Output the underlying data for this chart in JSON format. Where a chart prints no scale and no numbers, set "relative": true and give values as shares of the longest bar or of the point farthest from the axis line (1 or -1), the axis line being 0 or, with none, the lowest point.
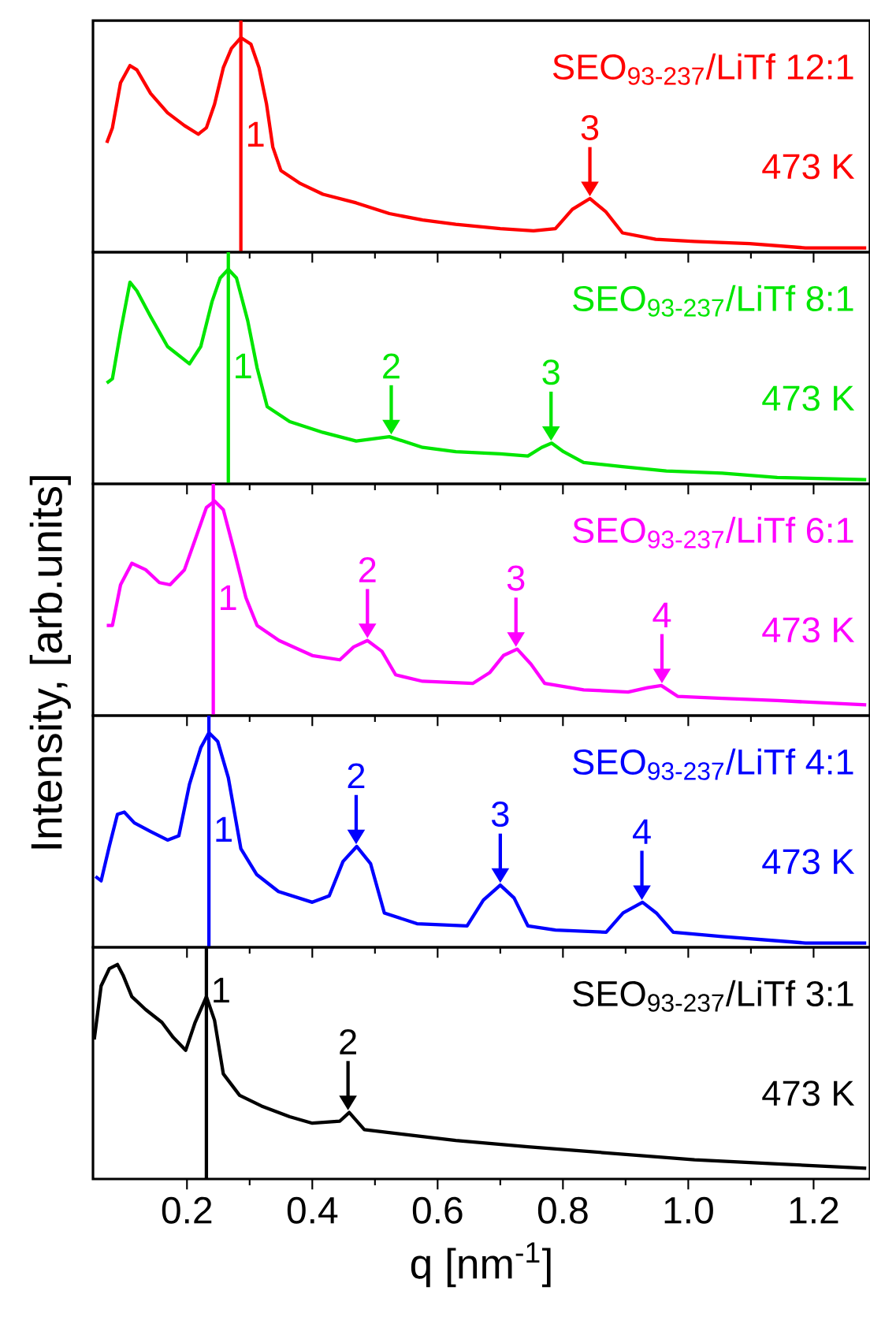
{
  "chart_data": [
    {
      "type": "line",
      "title": "SEO$_{93-237}$/LiTf 12:1",
      "subtitle": "473 K",
      "relative": true,
      "tick_labels": false,
      "xlim": [
        0.05,
        1.29
      ],
      "xticks": [
        0.2,
        0.4,
        0.6,
        0.8,
        1.0,
        1.2
      ],
      "x": [
        0.072,
        0.081,
        0.094,
        0.109,
        0.12,
        0.142,
        0.169,
        0.196,
        0.218,
        0.231,
        0.244,
        0.258,
        0.271,
        0.286,
        0.302,
        0.315,
        0.327,
        0.337,
        0.35,
        0.381,
        0.417,
        0.47,
        0.523,
        0.576,
        0.629,
        0.7,
        0.753,
        0.788,
        0.815,
        0.843,
        0.868,
        0.895,
        0.948,
        1.01,
        1.098,
        1.187,
        1.284
      ],
      "series": [
        {
          "color": "#ff0000",
          "values": [
            0.51,
            0.58,
            0.79,
            0.87,
            0.85,
            0.74,
            0.65,
            0.59,
            0.55,
            0.58,
            0.69,
            0.86,
            0.95,
            1,
            0.97,
            0.86,
            0.69,
            0.49,
            0.38,
            0.32,
            0.27,
            0.23,
            0.18,
            0.15,
            0.13,
            0.11,
            0.1,
            0.11,
            0.2,
            0.25,
            0.19,
            0.09,
            0.06,
            0.05,
            0.04,
            0.02,
            0.02
          ]
        }
      ],
      "ref_lines": [
        {
          "axis": "x",
          "value": 0.286,
          "color": "#ff0000"
        }
      ],
      "annotations": [
        "1",
        {
          "text": "3",
          "x": 0.843,
          "y": 0.25
        }
      ]
    },
    {
      "type": "line",
      "title": "SEO$_{93-237}$/LiTf 8:1",
      "subtitle": "473 K",
      "relative": true,
      "tick_labels": false,
      "xlim": [
        0.05,
        1.29
      ],
      "xticks": [
        0.2,
        0.4,
        0.6,
        0.8,
        1.0,
        1.2
      ],
      "x": [
        0.072,
        0.081,
        0.094,
        0.109,
        0.12,
        0.142,
        0.169,
        0.204,
        0.222,
        0.24,
        0.253,
        0.266,
        0.279,
        0.297,
        0.312,
        0.328,
        0.364,
        0.417,
        0.47,
        0.523,
        0.576,
        0.629,
        0.7,
        0.744,
        0.766,
        0.782,
        0.801,
        0.833,
        0.895,
        0.965,
        1.054,
        1.142,
        1.284
      ],
      "series": [
        {
          "color": "#00e600",
          "values": [
            0.47,
            0.49,
            0.71,
            0.94,
            0.9,
            0.78,
            0.64,
            0.56,
            0.64,
            0.85,
            0.96,
            1,
            0.96,
            0.76,
            0.54,
            0.36,
            0.29,
            0.24,
            0.2,
            0.22,
            0.17,
            0.15,
            0.14,
            0.13,
            0.17,
            0.19,
            0.15,
            0.1,
            0.08,
            0.06,
            0.05,
            0.03,
            0.02
          ]
        }
      ],
      "ref_lines": [
        {
          "axis": "x",
          "value": 0.266,
          "color": "#00e600"
        }
      ],
      "annotations": [
        "1",
        {
          "text": "2",
          "x": 0.526,
          "y": 0.22
        },
        {
          "text": "3",
          "x": 0.781,
          "y": 0.19
        }
      ]
    },
    {
      "type": "line",
      "title": "SEO$_{93-237}$/LiTf 6:1",
      "subtitle": "473 K",
      "ylabel": "Intensity, [arb.units]",
      "relative": true,
      "tick_labels": false,
      "xlim": [
        0.05,
        1.29
      ],
      "xticks": [
        0.2,
        0.4,
        0.6,
        0.8,
        1.0,
        1.2
      ],
      "x": [
        0.072,
        0.081,
        0.094,
        0.112,
        0.134,
        0.156,
        0.173,
        0.196,
        0.213,
        0.231,
        0.244,
        0.258,
        0.276,
        0.294,
        0.312,
        0.347,
        0.4,
        0.444,
        0.466,
        0.488,
        0.511,
        0.533,
        0.576,
        0.656,
        0.683,
        0.705,
        0.727,
        0.749,
        0.771,
        0.833,
        0.904,
        0.935,
        0.957,
        0.983,
        1.054,
        1.142,
        1.284
      ],
      "series": [
        {
          "color": "#ff00ff",
          "values": [
            0.42,
            0.42,
            0.61,
            0.71,
            0.68,
            0.62,
            0.61,
            0.68,
            0.82,
            0.97,
            1,
            0.96,
            0.76,
            0.55,
            0.42,
            0.35,
            0.28,
            0.26,
            0.32,
            0.35,
            0.3,
            0.19,
            0.16,
            0.15,
            0.2,
            0.28,
            0.31,
            0.24,
            0.15,
            0.12,
            0.11,
            0.13,
            0.14,
            0.09,
            0.08,
            0.07,
            0.05
          ]
        }
      ],
      "ref_lines": [
        {
          "axis": "x",
          "value": 0.242,
          "color": "#ff00ff"
        }
      ],
      "annotations": [
        "1",
        {
          "text": "2",
          "x": 0.488,
          "y": 0.35
        },
        {
          "text": "3",
          "x": 0.725,
          "y": 0.31
        },
        {
          "text": "4",
          "x": 0.958,
          "y": 0.14
        }
      ]
    },
    {
      "type": "line",
      "title": "SEO$_{93-237}$/LiTf 4:1",
      "subtitle": "473 K",
      "relative": true,
      "tick_labels": false,
      "xlim": [
        0.05,
        1.29
      ],
      "xticks": [
        0.2,
        0.4,
        0.6,
        0.8,
        1.0,
        1.2
      ],
      "x": [
        0.054,
        0.063,
        0.076,
        0.089,
        0.1,
        0.116,
        0.142,
        0.169,
        0.187,
        0.204,
        0.222,
        0.235,
        0.249,
        0.266,
        0.286,
        0.311,
        0.346,
        0.4,
        0.427,
        0.449,
        0.471,
        0.493,
        0.515,
        0.567,
        0.647,
        0.673,
        0.7,
        0.722,
        0.744,
        0.788,
        0.869,
        0.896,
        0.927,
        0.949,
        0.976,
        1.054,
        1.187,
        1.284
      ],
      "series": [
        {
          "color": "#0000ff",
          "values": [
            0.33,
            0.31,
            0.47,
            0.62,
            0.63,
            0.58,
            0.54,
            0.5,
            0.52,
            0.76,
            0.93,
            1,
            0.96,
            0.79,
            0.46,
            0.34,
            0.26,
            0.21,
            0.24,
            0.4,
            0.47,
            0.39,
            0.16,
            0.11,
            0.1,
            0.22,
            0.29,
            0.23,
            0.1,
            0.08,
            0.07,
            0.16,
            0.21,
            0.16,
            0.07,
            0.05,
            0.02,
            0.02
          ]
        }
      ],
      "ref_lines": [
        {
          "axis": "x",
          "value": 0.235,
          "color": "#0000ff"
        }
      ],
      "annotations": [
        "1",
        {
          "text": "2",
          "x": 0.47,
          "y": 0.47
        },
        {
          "text": "3",
          "x": 0.7,
          "y": 0.29
        },
        {
          "text": "4",
          "x": 0.926,
          "y": 0.21
        }
      ]
    },
    {
      "type": "line",
      "title": "SEO$_{93-237}$/LiTf 3:1",
      "subtitle": "473 K",
      "xlabel": "q [nm$^{-1}$]",
      "relative": true,
      "tick_labels": "x",
      "xlim": [
        0.05,
        1.29
      ],
      "xticks": [
        0.2,
        0.4,
        0.6,
        0.8,
        {
          "value": 1.0,
          "label": "1.0"
        },
        1.2
      ],
      "x": [
        0.052,
        0.063,
        0.076,
        0.089,
        0.098,
        0.112,
        0.134,
        0.16,
        0.178,
        0.198,
        0.213,
        0.231,
        0.244,
        0.258,
        0.284,
        0.319,
        0.364,
        0.4,
        0.444,
        0.459,
        0.483,
        0.541,
        0.629,
        0.744,
        0.877,
        1.01,
        1.142,
        1.284
      ],
      "series": [
        {
          "color": "#000000",
          "values": [
            0.65,
            0.9,
            0.98,
            1,
            0.95,
            0.85,
            0.79,
            0.73,
            0.66,
            0.6,
            0.73,
            0.85,
            0.74,
            0.49,
            0.39,
            0.34,
            0.29,
            0.26,
            0.27,
            0.31,
            0.23,
            0.21,
            0.18,
            0.15,
            0.12,
            0.09,
            0.07,
            0.05
          ]
        }
      ],
      "ref_lines": [
        {
          "axis": "x",
          "value": 0.231,
          "color": "#000000"
        }
      ],
      "annotations": [
        "1",
        {
          "text": "2",
          "x": 0.457,
          "y": 0.31
        }
      ]
    }
  ]
}
